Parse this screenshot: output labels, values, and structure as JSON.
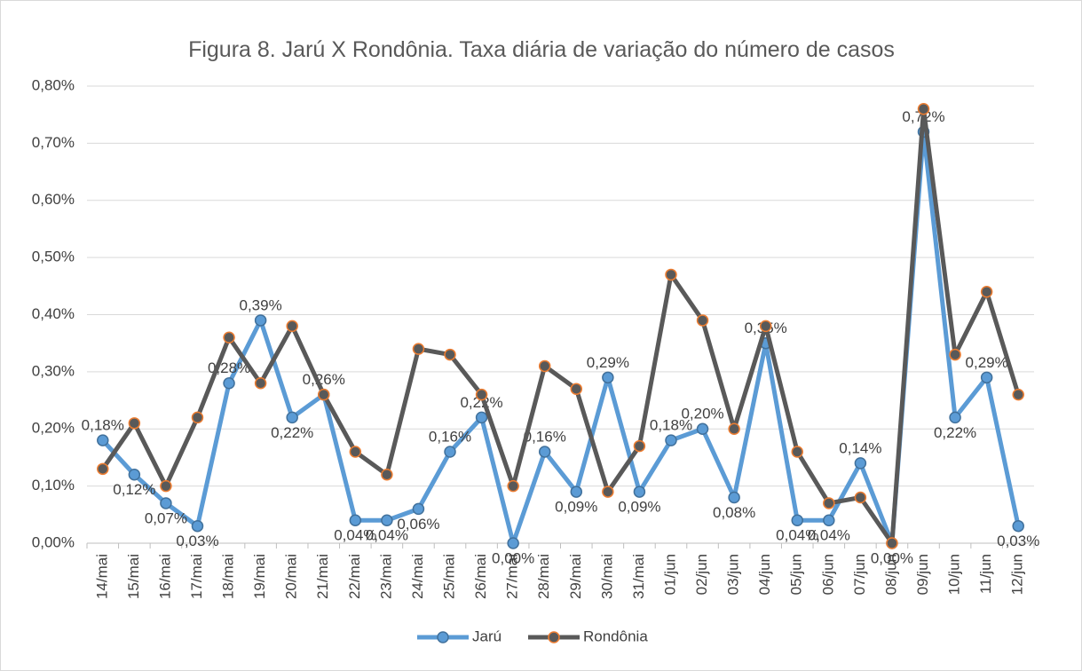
{
  "chart_data": {
    "type": "line",
    "title": "Figura 8. Jarú X Rondônia. Taxa diária de variação do número de casos",
    "categories": [
      "14/mai",
      "15/mai",
      "16/mai",
      "17/mai",
      "18/mai",
      "19/mai",
      "20/mai",
      "21/mai",
      "22/mai",
      "23/mai",
      "24/mai",
      "25/mai",
      "26/mai",
      "27/mai",
      "28/mai",
      "29/mai",
      "30/mai",
      "31/mai",
      "01/jun",
      "02/jun",
      "03/jun",
      "04/jun",
      "05/jun",
      "06/jun",
      "07/jun",
      "08/jun",
      "09/jun",
      "10/jun",
      "11/jun",
      "12/jun"
    ],
    "series": [
      {
        "name": "Jarú",
        "color": "#5b9bd5",
        "marker_edge": "#41719c",
        "values": [
          0.18,
          0.12,
          0.07,
          0.03,
          0.28,
          0.39,
          0.22,
          0.26,
          0.04,
          0.04,
          0.06,
          0.16,
          0.22,
          0.0,
          0.16,
          0.09,
          0.29,
          0.09,
          0.18,
          0.2,
          0.08,
          0.35,
          0.04,
          0.04,
          0.14,
          0.0,
          0.72,
          0.22,
          0.29,
          0.03
        ],
        "value_labels": [
          "0,18%",
          "0,12%",
          "0,07%",
          "0,03%",
          "0,28%",
          "0,39%",
          "0,22%",
          "0,26%",
          "0,04%",
          "0,04%",
          "0,06%",
          "0,16%",
          "0,22%",
          "0,00%",
          "0,16%",
          "0,09%",
          "0,29%",
          "0,09%",
          "0,18%",
          "0,20%",
          "0,08%",
          "0,35%",
          "0,04%",
          "0,04%",
          "0,14%",
          "0,00%",
          "0,72%",
          "0,22%",
          "0,29%",
          "0,03%"
        ]
      },
      {
        "name": "Rondônia",
        "color": "#595959",
        "marker_edge": "#ed7d31",
        "values": [
          0.13,
          0.21,
          0.1,
          0.22,
          0.36,
          0.28,
          0.38,
          0.26,
          0.16,
          0.12,
          0.34,
          0.33,
          0.26,
          0.1,
          0.31,
          0.27,
          0.09,
          0.17,
          0.47,
          0.39,
          0.2,
          0.38,
          0.16,
          0.07,
          0.08,
          0.0,
          0.76,
          0.33,
          0.44,
          0.26
        ]
      }
    ],
    "ylim": [
      0,
      0.8
    ],
    "yticks": [
      {
        "value": 0,
        "label": "0,00%"
      },
      {
        "value": 0.1,
        "label": "0,10%"
      },
      {
        "value": 0.2,
        "label": "0,20%"
      },
      {
        "value": 0.3,
        "label": "0,30%"
      },
      {
        "value": 0.4,
        "label": "0,40%"
      },
      {
        "value": 0.5,
        "label": "0,50%"
      },
      {
        "value": 0.6,
        "label": "0,60%"
      },
      {
        "value": 0.7,
        "label": "0,70%"
      },
      {
        "value": 0.8,
        "label": "0,80%"
      }
    ],
    "grid": true,
    "legend": "bottom"
  }
}
